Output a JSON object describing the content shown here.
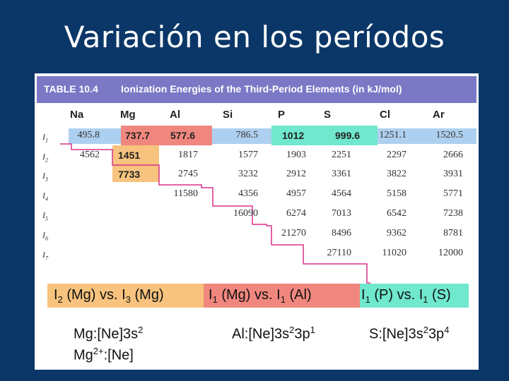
{
  "slide": {
    "title": "Variación en los períodos"
  },
  "table": {
    "number": "TABLE 10.4",
    "title": "Ionization Energies of the Third-Period Elements (in kJ/mol)",
    "columns": [
      "Na",
      "Mg",
      "Al",
      "Si",
      "P",
      "S",
      "Cl",
      "Ar"
    ],
    "rows": [
      {
        "label": "I",
        "sub": "1",
        "values": [
          "495.8",
          "737.7",
          "577.6",
          "786.5",
          "1012",
          "999.6",
          "1251.1",
          "1520.5"
        ]
      },
      {
        "label": "I",
        "sub": "2",
        "values": [
          "4562",
          "1451",
          "1817",
          "1577",
          "1903",
          "2251",
          "2297",
          "2666"
        ]
      },
      {
        "label": "I",
        "sub": "3",
        "values": [
          "",
          "7733",
          "2745",
          "3232",
          "2912",
          "3361",
          "3822",
          "3931"
        ]
      },
      {
        "label": "I",
        "sub": "4",
        "values": [
          "",
          "",
          "11580",
          "4356",
          "4957",
          "4564",
          "5158",
          "5771"
        ]
      },
      {
        "label": "I",
        "sub": "5",
        "values": [
          "",
          "",
          "",
          "16090",
          "6274",
          "7013",
          "6542",
          "7238"
        ]
      },
      {
        "label": "I",
        "sub": "6",
        "values": [
          "",
          "",
          "",
          "",
          "21270",
          "8496",
          "9362",
          "8781"
        ]
      },
      {
        "label": "I",
        "sub": "7",
        "values": [
          "",
          "",
          "",
          "",
          "",
          "27110",
          "11020",
          "12000"
        ]
      }
    ]
  },
  "comparisons": [
    {
      "a_label": "I",
      "a_sub": "2",
      "a_el": " (Mg) vs. ",
      "b_label": "I",
      "b_sub": "3",
      "b_el": " (Mg)"
    },
    {
      "a_label": "I",
      "a_sub": "1",
      "a_el": " (Mg) vs. ",
      "b_label": "I",
      "b_sub": "1",
      "b_el": " (Al)"
    },
    {
      "a_label": "I",
      "a_sub": "1",
      "a_el": " (P) vs. ",
      "b_label": "I",
      "b_sub": "1",
      "b_el": " (S)"
    }
  ],
  "configs": {
    "mg": {
      "sym": "Mg",
      "text": ":[Ne]3s",
      "sup": "2"
    },
    "mg2": {
      "sym": "Mg",
      "sup": "2+",
      "text": ":[Ne]"
    },
    "al": {
      "sym": "Al",
      "text1": ":[Ne]3s",
      "sup1": "2",
      "text2": "3p",
      "sup2": "1"
    },
    "s": {
      "sym": "S",
      "text1": ":[Ne]3s",
      "sup1": "2",
      "text2": "3p",
      "sup2": "4"
    }
  },
  "colors": {
    "background": "#0b3768",
    "header": "#7b78c6",
    "orange": "#f7c37e",
    "salmon": "#f0877e",
    "mint": "#6fe8cd",
    "blue": "#aed0f0",
    "magenta": "#d8318a"
  }
}
